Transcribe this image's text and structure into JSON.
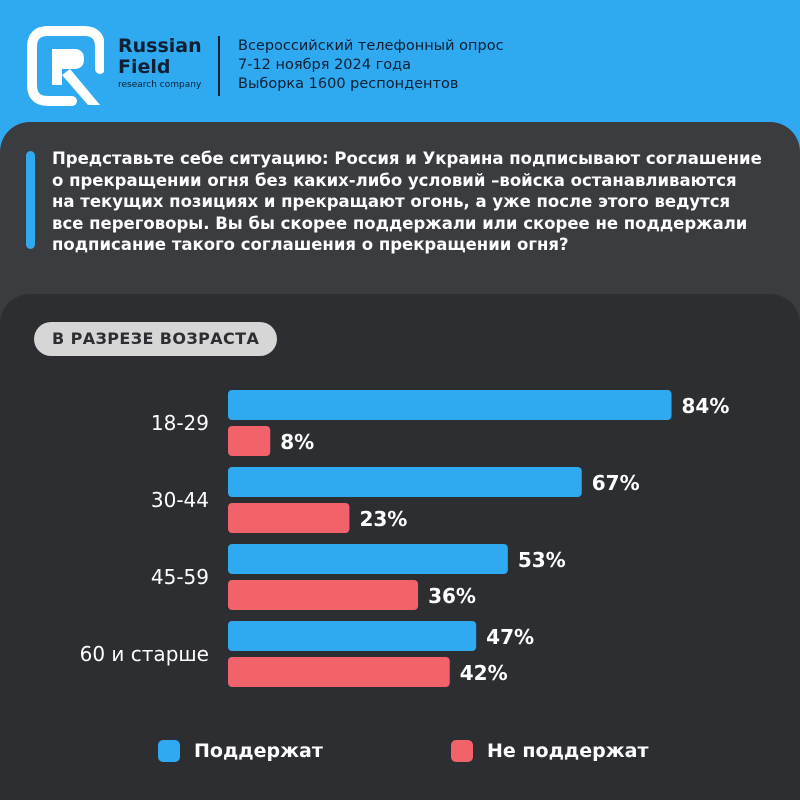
{
  "brand": {
    "line1": "Russian",
    "line2": "Field",
    "line3": "research company"
  },
  "survey": {
    "line1": "Всероссийский телефонный опрос",
    "line2": "7-12 ноября 2024 года",
    "line3": "Выборка 1600 респондентов"
  },
  "question_lines": [
    "Представьте себе ситуацию: Россия и Украина подписывают соглашение",
    "о прекращении огня без каких-либо условий –войска останавливаются",
    "на текущих позициях и прекращают огонь, а уже после этого ведутся",
    "все переговоры. Вы бы скорее поддержали или скорее не поддержали",
    "подписание такого соглашения о прекращении огня?"
  ],
  "section_label": "В РАЗРЕЗЕ ВОЗРАСТА",
  "colors": {
    "support": "#2fa9f0",
    "oppose": "#f2626a",
    "brand_blue": "#2fa9f0"
  },
  "chart_data": {
    "type": "bar",
    "orientation": "horizontal",
    "categories": [
      "18-29",
      "30-44",
      "45-59",
      "60 и старше"
    ],
    "series": [
      {
        "name": "Поддержат",
        "values": [
          84,
          67,
          53,
          47
        ],
        "labels": [
          "84%",
          "67%",
          "53%",
          "47%"
        ]
      },
      {
        "name": "Не поддержат",
        "values": [
          8,
          23,
          36,
          42
        ],
        "labels": [
          "8%",
          "23%",
          "36%",
          "42%"
        ]
      }
    ],
    "xlim": [
      0,
      100
    ],
    "grid": false,
    "legend_position": "bottom"
  }
}
